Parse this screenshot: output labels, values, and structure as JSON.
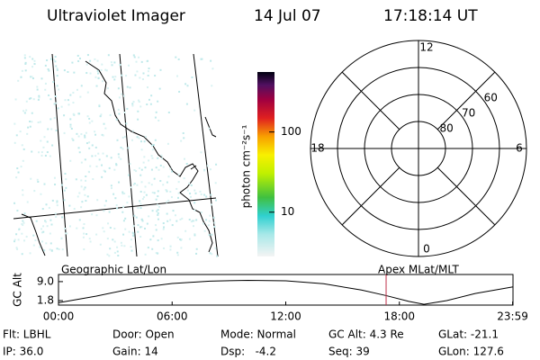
{
  "header": {
    "title": "Ultraviolet Imager",
    "date": "14 Jul 07",
    "time": "17:18:14 UT"
  },
  "colorbar": {
    "label": "photon cm⁻²s⁻¹",
    "scale": "log",
    "lim": [
      2.8,
      560
    ],
    "ticks": [
      10,
      100
    ]
  },
  "polar": {
    "lat_lim": [
      50,
      90
    ],
    "rings": [
      60,
      70,
      80
    ],
    "mlt_ticks": [
      0,
      6,
      12,
      18
    ]
  },
  "chart_data": {
    "type": "line",
    "left_label": "Geographic Lat/Lon",
    "right_label": "Apex MLat/MLT",
    "y_label": "GC Alt",
    "x": [
      0,
      2,
      4,
      6,
      8,
      10,
      12,
      14,
      16,
      17.3,
      18.5,
      19.3,
      20.5,
      22,
      24
    ],
    "values": [
      1.0,
      3.5,
      6.5,
      8.3,
      9.2,
      9.5,
      9.3,
      8.2,
      5.8,
      3.7,
      1.5,
      0.4,
      1.8,
      4.5,
      7.0
    ],
    "color": "#000000",
    "marker_x": 17.3,
    "marker_color": "#c0304a",
    "xlim": [
      0,
      24
    ],
    "xticks": [
      {
        "value": 0,
        "label": "00:00"
      },
      {
        "value": 6,
        "label": "06:00"
      },
      {
        "value": 12,
        "label": "12:00"
      },
      {
        "value": 18,
        "label": "18:00"
      },
      {
        "value": 23.98,
        "label": "23:59"
      }
    ],
    "ylim": [
      0.1,
      11.7
    ],
    "yticks": [
      {
        "value": 1.8,
        "label": "1.8"
      },
      {
        "value": 9,
        "label": "9.0"
      }
    ]
  },
  "footer": {
    "rows": [
      [
        "Flt: LBHL",
        "Door: Open",
        "Mode: Normal",
        "GC Alt: 4.3 Re",
        "GLat: -21.1"
      ],
      [
        "IP: 36.0",
        "Gain: 14",
        "Dsp:   -4.2",
        "Seq: 39",
        "GLon: 127.6"
      ]
    ]
  }
}
